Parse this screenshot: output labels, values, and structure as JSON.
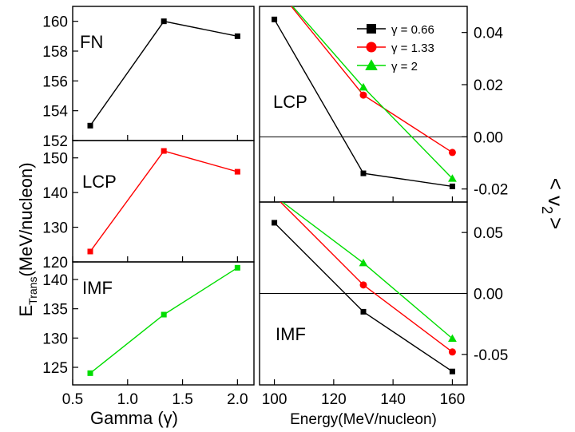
{
  "chart_data": [
    {
      "type": "scatter",
      "panel_label": "FN",
      "x": [
        0.66,
        1.33,
        2.0
      ],
      "values": [
        153,
        160,
        159
      ],
      "color": "#000000",
      "xlim": [
        0.5,
        2.15
      ],
      "ylim": [
        152,
        161
      ],
      "yticks": [
        152,
        154,
        156,
        158,
        160
      ],
      "xticks": [
        0.5,
        1.0,
        1.5,
        2.0
      ]
    },
    {
      "type": "scatter",
      "panel_label": "LCP",
      "x": [
        0.66,
        1.33,
        2.0
      ],
      "values": [
        123,
        152,
        146
      ],
      "color": "#ff0000",
      "xlim": [
        0.5,
        2.15
      ],
      "ylim": [
        120,
        155
      ],
      "yticks": [
        120,
        130,
        140,
        150
      ],
      "xticks": [
        0.5,
        1.0,
        1.5,
        2.0
      ]
    },
    {
      "type": "scatter",
      "panel_label": "IMF",
      "x": [
        0.66,
        1.33,
        2.0
      ],
      "values": [
        124,
        134,
        142
      ],
      "color": "#00dd00",
      "xlim": [
        0.5,
        2.15
      ],
      "ylim": [
        122,
        143
      ],
      "yticks": [
        125,
        130,
        135,
        140
      ],
      "xticks": [
        0.5,
        1.0,
        1.5,
        2.0
      ]
    },
    {
      "type": "line",
      "panel_label": "LCP",
      "x": [
        100,
        130,
        160
      ],
      "xlim": [
        95,
        165
      ],
      "ylim": [
        -0.025,
        0.05
      ],
      "yticks": [
        -0.02,
        0.0,
        0.02,
        0.04
      ],
      "ytick_labels": [
        "-0.02",
        "0.00",
        "0.02",
        "0.04"
      ],
      "xticks": [
        100,
        120,
        140,
        160
      ],
      "zero_line": true,
      "series": [
        {
          "name": "γ = 0.66",
          "values": [
            0.045,
            -0.014,
            -0.019
          ],
          "color": "#000000",
          "marker": "square"
        },
        {
          "name": "γ = 1.33",
          "values": [
            0.058,
            0.016,
            -0.006
          ],
          "color": "#ff0000",
          "marker": "circle"
        },
        {
          "name": "γ  = 2",
          "values": [
            0.058,
            0.019,
            -0.016
          ],
          "color": "#00dd00",
          "marker": "triangle"
        }
      ]
    },
    {
      "type": "line",
      "panel_label": "IMF",
      "x": [
        100,
        130,
        160
      ],
      "xlim": [
        95,
        165
      ],
      "ylim": [
        -0.075,
        0.075
      ],
      "yticks": [
        -0.05,
        0.0,
        0.05
      ],
      "ytick_labels": [
        "-0.05",
        "0.00",
        "0.05"
      ],
      "xticks": [
        100,
        120,
        140,
        160
      ],
      "zero_line": true,
      "series": [
        {
          "name": "γ = 0.66",
          "values": [
            0.058,
            -0.015,
            -0.064
          ],
          "color": "#000000",
          "marker": "square"
        },
        {
          "name": "γ = 1.33",
          "values": [
            0.08,
            0.007,
            -0.048
          ],
          "color": "#ff0000",
          "marker": "circle"
        },
        {
          "name": "γ  = 2",
          "values": [
            0.08,
            0.025,
            -0.037
          ],
          "color": "#00dd00",
          "marker": "triangle"
        }
      ]
    }
  ],
  "labels": {
    "left_xlabel": "Gamma (γ)",
    "left_ylabel_main": "E",
    "left_ylabel_sub": "Trans",
    "left_ylabel_rest": "(MeV/nucleon)",
    "right_xlabel": "Energy(MeV/nucleon)",
    "right_ylabel": "< v",
    "right_ylabel_sub": "2",
    "right_ylabel_end": ">"
  },
  "legend": {
    "placement": "top-right",
    "entries": [
      "γ = 0.66",
      "γ = 1.33",
      "γ  = 2"
    ]
  }
}
